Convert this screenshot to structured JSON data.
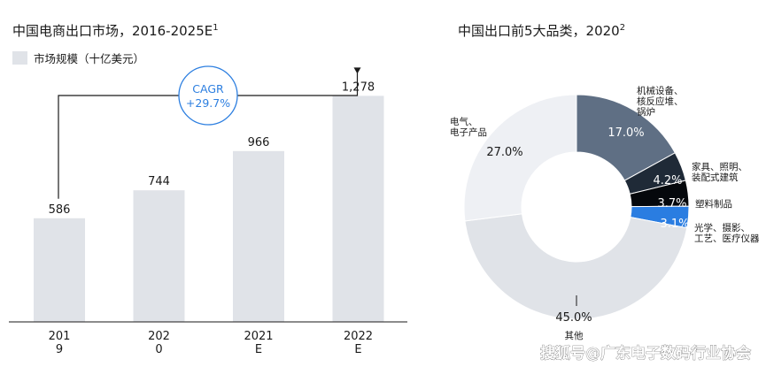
{
  "chart_data": [
    {
      "type": "bar",
      "title": "中国电商出口市场，2016-2025E",
      "title_note": "1",
      "legend": "市场规模（十亿美元）",
      "categories": [
        [
          "201",
          "9"
        ],
        [
          "202",
          "0"
        ],
        [
          "2021",
          "E"
        ],
        [
          "2022",
          "E"
        ]
      ],
      "values": [
        586,
        744,
        966,
        1278
      ],
      "value_labels": [
        "586",
        "744",
        "966",
        "1,278"
      ],
      "ylim": [
        0,
        1500
      ],
      "bar_color": "#e0e3e8",
      "cagr": {
        "label": "CAGR",
        "value": "+29.7%",
        "color": "#2d7fe0"
      }
    },
    {
      "type": "pie",
      "variant": "donut",
      "title": "中国出口前5大品类，2020",
      "title_note": "2",
      "slices": [
        {
          "label": [
            "机械设备、",
            "核反应堆、",
            "锅炉"
          ],
          "value": 17.0,
          "text": "17.0%",
          "color": "#5f6f84",
          "text_color": "#ffffff"
        },
        {
          "label": [
            "家具、照明、",
            "装配式建筑"
          ],
          "value": 4.2,
          "text": "4.2%",
          "color": "#1f2a37",
          "text_color": "#ffffff"
        },
        {
          "label": [
            "塑料制品"
          ],
          "value": 3.7,
          "text": "3.7%",
          "color": "#05080c",
          "text_color": "#ffffff"
        },
        {
          "label": [
            "光学、摄影、",
            "工艺、医疗仪器"
          ],
          "value": 3.1,
          "text": "3.1%",
          "color": "#2a7de1",
          "text_color": "#ffffff"
        },
        {
          "label": [
            "其他"
          ],
          "value": 45.0,
          "text": "45.0%",
          "color": "#e0e3e8",
          "text_color": "#1a1a1a"
        },
        {
          "label": [
            "电气、",
            "电子产品"
          ],
          "value": 27.0,
          "text": "27.0%",
          "color": "#eef0f4",
          "text_color": "#1a1a1a"
        }
      ]
    }
  ],
  "watermark": "搜狐号@广东电子数码行业协会"
}
